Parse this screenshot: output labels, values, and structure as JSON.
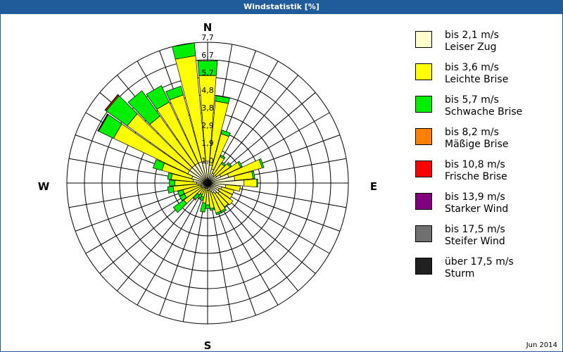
{
  "title": "Windstatistik [%]",
  "footer": "Jun 2014",
  "chart_data": {
    "type": "wind-rose",
    "title": "Windstatistik [%]",
    "unit": "%",
    "directions_deg": [
      0,
      10,
      20,
      30,
      40,
      50,
      60,
      70,
      80,
      90,
      100,
      110,
      120,
      130,
      140,
      150,
      160,
      170,
      180,
      190,
      200,
      210,
      220,
      230,
      240,
      250,
      260,
      270,
      280,
      290,
      300,
      310,
      320,
      330,
      340,
      350
    ],
    "compass_labels": {
      "N": "N",
      "E": "E",
      "S": "S",
      "W": "W"
    },
    "ring_labels": [
      "1,0",
      "1,9",
      "2,9",
      "3,8",
      "4,8",
      "5,7",
      "6,7",
      "7,7"
    ],
    "rmax": 7.7,
    "series": [
      {
        "name": "bis 2,1 m/s",
        "label": "Leiser Zug",
        "color": "#ffffcc",
        "values": [
          1.2,
          1.0,
          0.8,
          0.6,
          0.5,
          0.6,
          0.8,
          1.2,
          1.5,
          2.0,
          1.0,
          0.8,
          0.7,
          0.8,
          0.7,
          0.6,
          0.5,
          0.4,
          0.4,
          0.3,
          0.3,
          0.3,
          0.3,
          0.4,
          0.4,
          0.4,
          0.5,
          0.6,
          0.8,
          0.9,
          1.2,
          1.2,
          1.2,
          1.2,
          1.2,
          1.2
        ]
      },
      {
        "name": "bis 3,6 m/s",
        "label": "Leichte Brise",
        "color": "#ffff00",
        "values": [
          4.7,
          3.5,
          2.0,
          1.0,
          0.8,
          0.9,
          1.2,
          1.9,
          1.0,
          0.7,
          0.8,
          0.7,
          0.8,
          0.9,
          0.9,
          1.1,
          1.2,
          1.0,
          0.8,
          0.8,
          0.5,
          0.4,
          0.5,
          1.2,
          1.0,
          1.0,
          1.4,
          1.2,
          1.2,
          1.7,
          4.5,
          4.2,
          3.3,
          3.7,
          3.8,
          5.8
        ]
      },
      {
        "name": "bis 5,7 m/s",
        "label": "Schwache Brise",
        "color": "#00ee00",
        "values": [
          0.8,
          0.3,
          0.2,
          0.1,
          0.1,
          0.1,
          0.1,
          0.1,
          0.1,
          0.05,
          0,
          0,
          0,
          0,
          0.05,
          0.1,
          0.1,
          0.1,
          0.2,
          0.5,
          0.2,
          0.2,
          0.3,
          0.7,
          0.3,
          0.3,
          0.3,
          0.3,
          0.2,
          0.5,
          0.9,
          1.4,
          1.7,
          1.0,
          0.5,
          0.7
        ]
      },
      {
        "name": "bis 8,2 m/s",
        "label": "Mäßige Brise",
        "color": "#ff8000",
        "values": [
          0,
          0,
          0,
          0,
          0,
          0,
          0,
          0,
          0,
          0,
          0,
          0,
          0,
          0,
          0,
          0,
          0,
          0,
          0,
          0,
          0,
          0,
          0.05,
          0,
          0,
          0,
          0,
          0,
          0,
          0,
          0.03,
          0.05,
          0,
          0,
          0,
          0
        ]
      },
      {
        "name": "bis 10,8 m/s",
        "label": "Frische Brise",
        "color": "#ff0000",
        "values": [
          0,
          0,
          0,
          0,
          0,
          0,
          0,
          0,
          0,
          0,
          0,
          0,
          0,
          0,
          0,
          0,
          0,
          0,
          0,
          0,
          0,
          0,
          0,
          0,
          0,
          0,
          0,
          0,
          0,
          0,
          0.03,
          0.05,
          0,
          0,
          0,
          0
        ]
      },
      {
        "name": "bis 13,9 m/s",
        "label": "Starker Wind",
        "color": "#800080",
        "values": [
          0,
          0,
          0,
          0,
          0,
          0,
          0,
          0,
          0,
          0,
          0,
          0,
          0,
          0,
          0,
          0,
          0,
          0,
          0,
          0,
          0,
          0,
          0,
          0,
          0,
          0,
          0,
          0,
          0,
          0,
          0,
          0,
          0,
          0,
          0,
          0
        ]
      },
      {
        "name": "bis 17,5 m/s",
        "label": "Steifer Wind",
        "color": "#707070",
        "values": [
          0,
          0,
          0,
          0,
          0,
          0,
          0,
          0,
          0,
          0,
          0,
          0,
          0,
          0,
          0,
          0,
          0,
          0,
          0,
          0,
          0,
          0,
          0,
          0,
          0,
          0,
          0,
          0,
          0,
          0,
          0,
          0,
          0,
          0,
          0,
          0
        ]
      },
      {
        "name": "über 17,5 m/s",
        "label": "Sturm",
        "color": "#202020",
        "values": [
          0,
          0,
          0,
          0,
          0,
          0,
          0,
          0,
          0,
          0,
          0,
          0,
          0,
          0,
          0,
          0,
          0,
          0,
          0,
          0,
          0,
          0,
          0,
          0,
          0,
          0,
          0,
          0,
          0,
          0,
          0,
          0,
          0,
          0,
          0,
          0
        ]
      }
    ],
    "legend_position": "right"
  }
}
